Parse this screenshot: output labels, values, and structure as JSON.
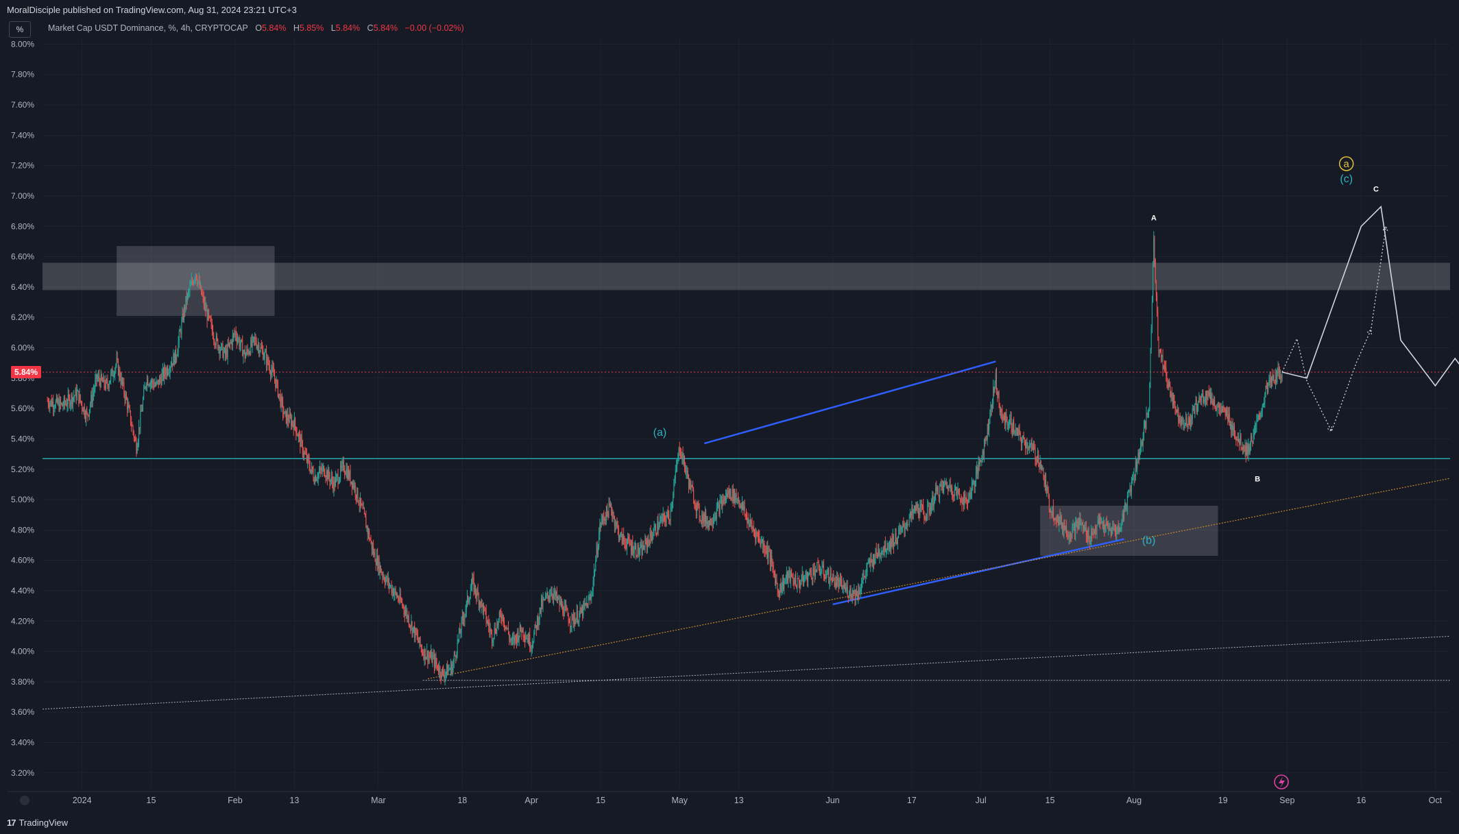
{
  "header": {
    "publisher": "MoralDisciple published on TradingView.com, Aug 31, 2024 23:21 UTC+3"
  },
  "legend": {
    "symbol": "Market Cap USDT Dominance, %, 4h, CRYPTOCAP",
    "o_label": "O",
    "o_value": "5.84%",
    "h_label": "H",
    "h_value": "5.85%",
    "l_label": "L",
    "l_value": "5.84%",
    "c_label": "C",
    "c_value": "5.84%",
    "change": "−0.00 (−0.02%)"
  },
  "toolbar": {
    "unit_label": "%"
  },
  "footer": {
    "brand": "TradingView"
  },
  "colors": {
    "background": "#161a25",
    "up": "#26a69a",
    "down": "#ef5350",
    "price_label": "#f23645",
    "support": "#22a7b3",
    "trendline_blue": "#2f5fff",
    "trendline_orange": "#c98a2f",
    "wave_label": "#2db3c4",
    "circle_label": "#e0c33a"
  },
  "chart_data": {
    "type": "candlestick",
    "title": "",
    "x_type": "date",
    "xlim": [
      "2023-12-24",
      "2024-10-04"
    ],
    "ylim": [
      3.1,
      8.02
    ],
    "y_ticks": [
      "8.00%",
      "7.80%",
      "7.60%",
      "7.40%",
      "7.20%",
      "7.00%",
      "6.80%",
      "6.60%",
      "6.40%",
      "6.20%",
      "6.00%",
      "5.80%",
      "5.60%",
      "5.40%",
      "5.20%",
      "5.00%",
      "4.80%",
      "4.60%",
      "4.40%",
      "4.20%",
      "4.00%",
      "3.80%",
      "3.60%",
      "3.40%",
      "3.20%"
    ],
    "y_tick_values": [
      8.0,
      7.8,
      7.6,
      7.4,
      7.2,
      7.0,
      6.8,
      6.6,
      6.4,
      6.2,
      6.0,
      5.8,
      5.6,
      5.4,
      5.2,
      5.0,
      4.8,
      4.6,
      4.4,
      4.2,
      4.0,
      3.8,
      3.6,
      3.4,
      3.2
    ],
    "x_ticks": [
      {
        "date": "2024-01-01",
        "label": "2024"
      },
      {
        "date": "2024-01-15",
        "label": "15"
      },
      {
        "date": "2024-02-01",
        "label": "Feb"
      },
      {
        "date": "2024-02-13",
        "label": "13"
      },
      {
        "date": "2024-03-01",
        "label": "Mar"
      },
      {
        "date": "2024-03-18",
        "label": "18"
      },
      {
        "date": "2024-04-01",
        "label": "Apr"
      },
      {
        "date": "2024-04-15",
        "label": "15"
      },
      {
        "date": "2024-05-01",
        "label": "May"
      },
      {
        "date": "2024-05-13",
        "label": "13"
      },
      {
        "date": "2024-06-01",
        "label": "Jun"
      },
      {
        "date": "2024-06-17",
        "label": "17"
      },
      {
        "date": "2024-07-01",
        "label": "Jul"
      },
      {
        "date": "2024-07-15",
        "label": "15"
      },
      {
        "date": "2024-08-01",
        "label": "Aug"
      },
      {
        "date": "2024-08-19",
        "label": "19"
      },
      {
        "date": "2024-09-01",
        "label": "Sep"
      },
      {
        "date": "2024-09-16",
        "label": "16"
      },
      {
        "date": "2024-10-01",
        "label": "Oct"
      }
    ],
    "price_path": [
      [
        "2023-12-25",
        5.65
      ],
      [
        "2023-12-28",
        5.62
      ],
      [
        "2023-12-31",
        5.7
      ],
      [
        "2024-01-02",
        5.55
      ],
      [
        "2024-01-04",
        5.8
      ],
      [
        "2024-01-06",
        5.75
      ],
      [
        "2024-01-08",
        5.9
      ],
      [
        "2024-01-10",
        5.65
      ],
      [
        "2024-01-12",
        5.35
      ],
      [
        "2024-01-14",
        5.8
      ],
      [
        "2024-01-16",
        5.75
      ],
      [
        "2024-01-18",
        5.85
      ],
      [
        "2024-01-20",
        5.95
      ],
      [
        "2024-01-22",
        6.3
      ],
      [
        "2024-01-24",
        6.5
      ],
      [
        "2024-01-26",
        6.25
      ],
      [
        "2024-01-28",
        6.05
      ],
      [
        "2024-01-30",
        5.95
      ],
      [
        "2024-02-01",
        6.1
      ],
      [
        "2024-02-03",
        5.95
      ],
      [
        "2024-02-05",
        6.05
      ],
      [
        "2024-02-07",
        5.95
      ],
      [
        "2024-02-09",
        5.8
      ],
      [
        "2024-02-11",
        5.55
      ],
      [
        "2024-02-13",
        5.5
      ],
      [
        "2024-02-15",
        5.3
      ],
      [
        "2024-02-17",
        5.15
      ],
      [
        "2024-02-19",
        5.2
      ],
      [
        "2024-02-21",
        5.1
      ],
      [
        "2024-02-23",
        5.22
      ],
      [
        "2024-02-25",
        5.1
      ],
      [
        "2024-02-27",
        4.9
      ],
      [
        "2024-02-29",
        4.65
      ],
      [
        "2024-03-02",
        4.5
      ],
      [
        "2024-03-04",
        4.4
      ],
      [
        "2024-03-06",
        4.3
      ],
      [
        "2024-03-08",
        4.15
      ],
      [
        "2024-03-10",
        4.0
      ],
      [
        "2024-03-12",
        3.95
      ],
      [
        "2024-03-14",
        3.85
      ],
      [
        "2024-03-16",
        3.9
      ],
      [
        "2024-03-18",
        4.2
      ],
      [
        "2024-03-20",
        4.45
      ],
      [
        "2024-03-22",
        4.3
      ],
      [
        "2024-03-24",
        4.1
      ],
      [
        "2024-03-26",
        4.25
      ],
      [
        "2024-03-28",
        4.05
      ],
      [
        "2024-03-30",
        4.15
      ],
      [
        "2024-04-01",
        4.05
      ],
      [
        "2024-04-03",
        4.3
      ],
      [
        "2024-04-05",
        4.4
      ],
      [
        "2024-04-07",
        4.3
      ],
      [
        "2024-04-09",
        4.2
      ],
      [
        "2024-04-11",
        4.25
      ],
      [
        "2024-04-13",
        4.35
      ],
      [
        "2024-04-15",
        4.85
      ],
      [
        "2024-04-17",
        4.95
      ],
      [
        "2024-04-19",
        4.75
      ],
      [
        "2024-04-21",
        4.7
      ],
      [
        "2024-04-23",
        4.65
      ],
      [
        "2024-04-25",
        4.75
      ],
      [
        "2024-04-27",
        4.85
      ],
      [
        "2024-04-29",
        4.9
      ],
      [
        "2024-05-01",
        5.35
      ],
      [
        "2024-05-03",
        5.1
      ],
      [
        "2024-05-05",
        4.9
      ],
      [
        "2024-05-07",
        4.85
      ],
      [
        "2024-05-09",
        4.95
      ],
      [
        "2024-05-11",
        5.05
      ],
      [
        "2024-05-13",
        5.0
      ],
      [
        "2024-05-15",
        4.85
      ],
      [
        "2024-05-17",
        4.75
      ],
      [
        "2024-05-19",
        4.65
      ],
      [
        "2024-05-21",
        4.4
      ],
      [
        "2024-05-23",
        4.5
      ],
      [
        "2024-05-25",
        4.45
      ],
      [
        "2024-05-27",
        4.5
      ],
      [
        "2024-05-29",
        4.55
      ],
      [
        "2024-05-31",
        4.5
      ],
      [
        "2024-06-02",
        4.45
      ],
      [
        "2024-06-04",
        4.4
      ],
      [
        "2024-06-06",
        4.38
      ],
      [
        "2024-06-08",
        4.55
      ],
      [
        "2024-06-10",
        4.65
      ],
      [
        "2024-06-12",
        4.7
      ],
      [
        "2024-06-14",
        4.75
      ],
      [
        "2024-06-16",
        4.85
      ],
      [
        "2024-06-18",
        4.95
      ],
      [
        "2024-06-20",
        4.9
      ],
      [
        "2024-06-22",
        5.05
      ],
      [
        "2024-06-24",
        5.1
      ],
      [
        "2024-06-26",
        5.05
      ],
      [
        "2024-06-28",
        4.98
      ],
      [
        "2024-06-30",
        5.15
      ],
      [
        "2024-07-02",
        5.4
      ],
      [
        "2024-07-04",
        5.8
      ],
      [
        "2024-07-05",
        5.55
      ],
      [
        "2024-07-07",
        5.5
      ],
      [
        "2024-07-09",
        5.4
      ],
      [
        "2024-07-11",
        5.35
      ],
      [
        "2024-07-13",
        5.25
      ],
      [
        "2024-07-15",
        4.95
      ],
      [
        "2024-07-17",
        4.85
      ],
      [
        "2024-07-19",
        4.78
      ],
      [
        "2024-07-21",
        4.85
      ],
      [
        "2024-07-23",
        4.75
      ],
      [
        "2024-07-25",
        4.85
      ],
      [
        "2024-07-27",
        4.8
      ],
      [
        "2024-07-29",
        4.8
      ],
      [
        "2024-07-31",
        5.05
      ],
      [
        "2024-08-02",
        5.3
      ],
      [
        "2024-08-04",
        5.6
      ],
      [
        "2024-08-05",
        6.7
      ],
      [
        "2024-08-06",
        6.0
      ],
      [
        "2024-08-08",
        5.75
      ],
      [
        "2024-08-10",
        5.55
      ],
      [
        "2024-08-12",
        5.5
      ],
      [
        "2024-08-14",
        5.65
      ],
      [
        "2024-08-16",
        5.7
      ],
      [
        "2024-08-18",
        5.6
      ],
      [
        "2024-08-20",
        5.55
      ],
      [
        "2024-08-22",
        5.4
      ],
      [
        "2024-08-24",
        5.32
      ],
      [
        "2024-08-26",
        5.5
      ],
      [
        "2024-08-28",
        5.75
      ],
      [
        "2024-08-30",
        5.82
      ],
      [
        "2024-08-31",
        5.84
      ]
    ],
    "current_price": {
      "value": 5.84,
      "label": "5.84%"
    },
    "horizontal_lines": [
      {
        "name": "support",
        "value": 5.27
      },
      {
        "name": "low-line",
        "value": 3.81
      }
    ],
    "trendlines": [
      {
        "name": "blue-upper",
        "from": [
          "2024-05-06",
          5.37
        ],
        "to": [
          "2024-07-04",
          5.91
        ]
      },
      {
        "name": "blue-lower-1",
        "from": [
          "2024-06-01",
          4.31
        ],
        "to": [
          "2024-07-30",
          4.74
        ]
      },
      {
        "name": "orange-dotted",
        "from": [
          "2024-03-11",
          3.82
        ],
        "to": [
          "2024-10-04",
          5.14
        ]
      },
      {
        "name": "white-dotted-long",
        "from": [
          "2023-12-24",
          3.62
        ],
        "to": [
          "2024-10-04",
          4.1
        ]
      }
    ],
    "zones": [
      {
        "name": "resistance-band",
        "from": "2023-12-24",
        "to": "2024-10-04",
        "y": [
          6.38,
          6.56
        ]
      },
      {
        "name": "january-box",
        "from": "2024-01-08",
        "to": "2024-02-09",
        "y": [
          6.21,
          6.67
        ]
      },
      {
        "name": "july-box",
        "from": "2024-07-13",
        "to": "2024-08-18",
        "y": [
          4.63,
          4.96
        ]
      }
    ],
    "projection_solid": [
      [
        "2024-08-31",
        5.84
      ],
      [
        "2024-09-05",
        5.8
      ],
      [
        "2024-09-16",
        6.8
      ],
      [
        "2024-09-20",
        6.93
      ],
      [
        "2024-09-24",
        6.05
      ],
      [
        "2024-10-01",
        5.75
      ],
      [
        "2024-10-05",
        5.93
      ],
      [
        "2024-10-08",
        5.8
      ]
    ],
    "projection_dotted": [
      [
        "2024-08-31",
        5.84
      ],
      [
        "2024-09-03",
        6.06
      ],
      [
        "2024-09-05",
        5.78
      ],
      [
        "2024-09-10",
        5.45
      ],
      [
        "2024-09-15",
        5.9
      ],
      [
        "2024-09-18",
        6.12
      ],
      [
        "2024-09-21",
        6.8
      ]
    ],
    "annotations": [
      {
        "text": "(a)",
        "x": "2024-04-27",
        "y": 5.42,
        "style": "wave"
      },
      {
        "text": "(b)",
        "x": "2024-08-04",
        "y": 4.71,
        "style": "wave"
      },
      {
        "text": "(c)",
        "x": "2024-09-13",
        "y": 7.09,
        "style": "wave"
      },
      {
        "text": "a",
        "x": "2024-09-13",
        "y": 7.19,
        "style": "circle"
      },
      {
        "text": "A",
        "x": "2024-08-05",
        "y": 6.84,
        "style": "small"
      },
      {
        "text": "B",
        "x": "2024-08-26",
        "y": 5.12,
        "style": "small"
      },
      {
        "text": "C",
        "x": "2024-09-19",
        "y": 7.03,
        "style": "small"
      }
    ]
  }
}
